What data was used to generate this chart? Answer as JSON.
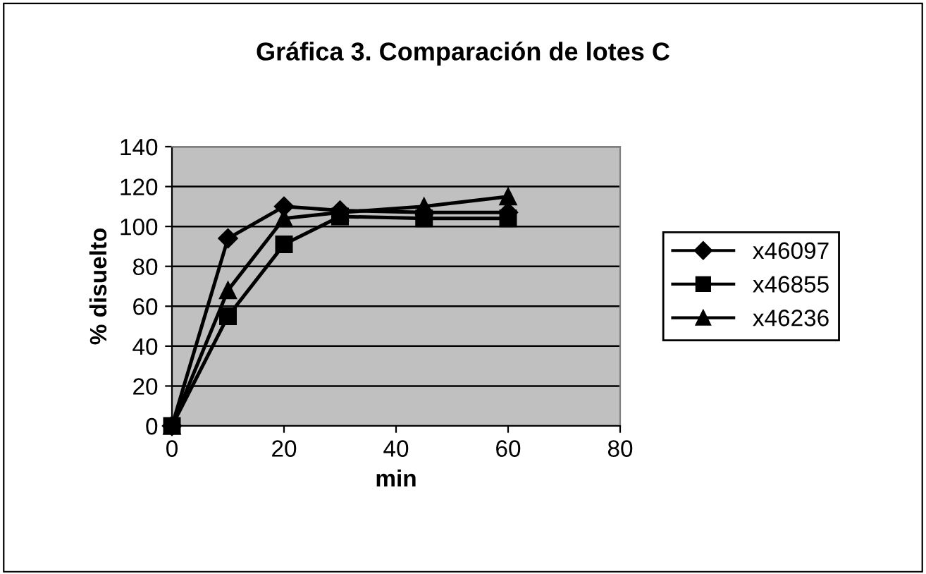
{
  "chart_data": {
    "type": "line",
    "title": "Gráfica 3. Comparación de lotes C",
    "xlabel": "min",
    "ylabel": "% disuelto",
    "x": [
      0,
      10,
      20,
      30,
      45,
      60
    ],
    "series": [
      {
        "name": "x46097",
        "color": "#000000",
        "marker": "diamond",
        "values": [
          0,
          94,
          110,
          108,
          107,
          107
        ]
      },
      {
        "name": "x46855",
        "color": "#000000",
        "marker": "square",
        "values": [
          0,
          55,
          91,
          105,
          104,
          104
        ]
      },
      {
        "name": "x46236",
        "color": "#000000",
        "marker": "triangle",
        "values": [
          0,
          68,
          104,
          107,
          110,
          115
        ]
      }
    ],
    "xlim": [
      0,
      80
    ],
    "xticks": [
      0,
      20,
      40,
      60,
      80
    ],
    "ylim": [
      0,
      140
    ],
    "yticks": [
      0,
      20,
      40,
      60,
      80,
      100,
      120,
      140
    ],
    "grid": "y",
    "legend": "right",
    "line_style": "solid"
  }
}
